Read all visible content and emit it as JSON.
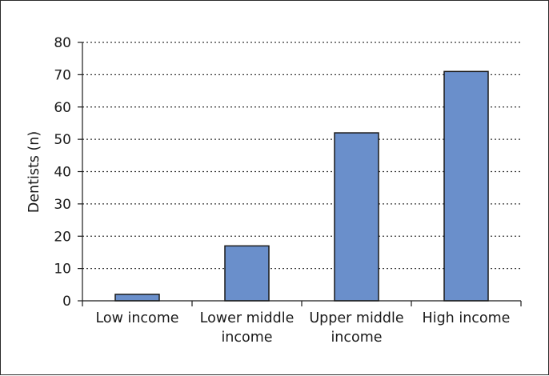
{
  "chart_data": {
    "type": "bar",
    "title": "",
    "xlabel": "",
    "ylabel": "Dentists (n)",
    "ylim": [
      0,
      80
    ],
    "yticks": [
      "0",
      "10",
      "20",
      "30",
      "40",
      "50",
      "60",
      "70",
      "80"
    ],
    "grid": "horizontal-dotted",
    "categories": [
      [
        "Low income"
      ],
      [
        "Lower middle",
        "income"
      ],
      [
        "Upper middle",
        "income"
      ],
      [
        "High income"
      ]
    ],
    "values": [
      2,
      17,
      52,
      71
    ],
    "bar_color": "#6a8fcb",
    "bar_edge_color": "#1a1a1a"
  }
}
